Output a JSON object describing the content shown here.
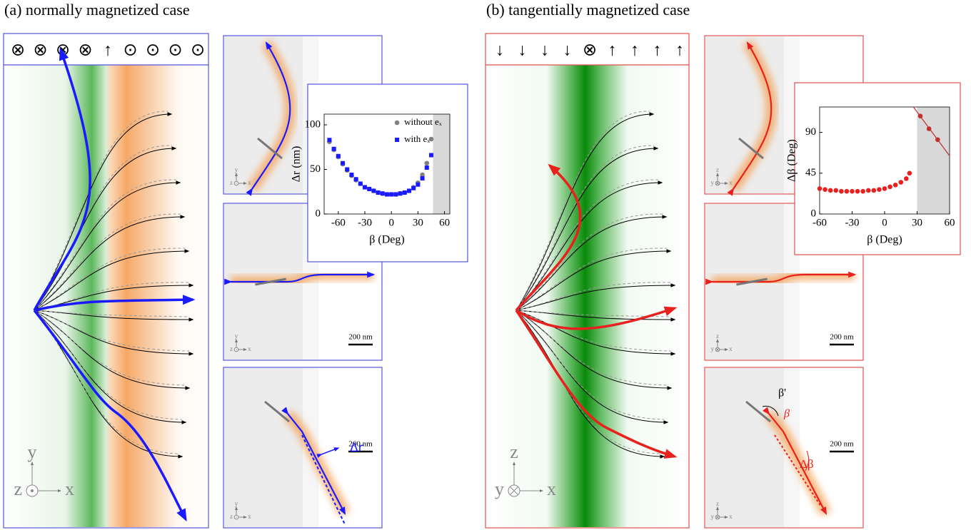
{
  "panel_a": {
    "label": "(a)  normally magnetized case",
    "magnetization": [
      "⊗",
      "⊗",
      "⊗",
      "⊗",
      "↑",
      "⊙",
      "⊙",
      "⊙",
      "⊙"
    ],
    "axes": {
      "vertical": "y",
      "out_of_plane": "z",
      "horizontal": "x"
    },
    "scale_bar": "200 nm",
    "annotation": "Δr",
    "inset": {
      "type": "scatter",
      "xlabel": "β (Deg)",
      "ylabel": "Δr (nm)",
      "xlim": [
        -76,
        66
      ],
      "ylim": [
        0,
        112
      ],
      "xticks": [
        -60,
        -30,
        0,
        30,
        60
      ],
      "yticks": [
        0,
        50,
        100
      ],
      "shaded_from": 47,
      "series": [
        {
          "name": "without eₓ",
          "color": "#808080",
          "marker": "circle",
          "x": [
            -70,
            -65,
            -60,
            -55,
            -50,
            -45,
            -40,
            -35,
            -30,
            -25,
            -20,
            -15,
            -10,
            -5,
            0,
            5,
            10,
            15,
            20,
            25,
            30,
            35,
            40,
            45
          ],
          "values": [
            81,
            72,
            64,
            56,
            49,
            43,
            38,
            34,
            30,
            28,
            26,
            24,
            23,
            22,
            22,
            22,
            23,
            24,
            26,
            30,
            35,
            44,
            57,
            84
          ]
        },
        {
          "name": "with eₓ",
          "color": "#1a1aff",
          "marker": "square",
          "x": [
            -70,
            -65,
            -60,
            -55,
            -50,
            -45,
            -40,
            -35,
            -30,
            -25,
            -20,
            -15,
            -10,
            -5,
            0,
            5,
            10,
            15,
            20,
            25,
            30,
            35,
            40,
            45
          ],
          "values": [
            83,
            73,
            65,
            57,
            50,
            44,
            39,
            34,
            30,
            28,
            26,
            24,
            23,
            22,
            22,
            22,
            23,
            24,
            26,
            29,
            33,
            40,
            52,
            66
          ]
        }
      ]
    }
  },
  "panel_b": {
    "label": "(b) tangentially magnetized case",
    "magnetization": [
      "↓",
      "↓",
      "↓",
      "↓",
      "⊗",
      "↑",
      "↑",
      "↑",
      "↑"
    ],
    "axes": {
      "vertical": "z",
      "out_of_plane": "y",
      "horizontal": "x"
    },
    "scale_bar": "200 nm",
    "annotations": [
      "β'",
      "β",
      "Δβ"
    ],
    "inset": {
      "type": "scatter",
      "xlabel": "β (Deg)",
      "ylabel": "Δβ (Deg)",
      "xlim": [
        -60,
        60
      ],
      "ylim": [
        0,
        118
      ],
      "xticks": [
        -60,
        -30,
        0,
        30,
        60
      ],
      "yticks": [
        0,
        45,
        90
      ],
      "shaded_from": 30,
      "series": [
        {
          "color": "#e8201e",
          "marker": "circle",
          "x": [
            -60,
            -55,
            -50,
            -45,
            -40,
            -35,
            -30,
            -25,
            -20,
            -15,
            -10,
            -5,
            0,
            5,
            10,
            15,
            20,
            23
          ],
          "values": [
            28,
            27,
            26,
            26,
            25,
            25,
            25,
            25,
            25,
            26,
            26,
            27,
            28,
            30,
            32,
            35,
            39,
            45
          ]
        },
        {
          "color": "#c03030",
          "marker": "circle",
          "line": true,
          "x": [
            33,
            41,
            49
          ],
          "values": [
            108,
            94,
            82
          ]
        }
      ]
    }
  }
}
